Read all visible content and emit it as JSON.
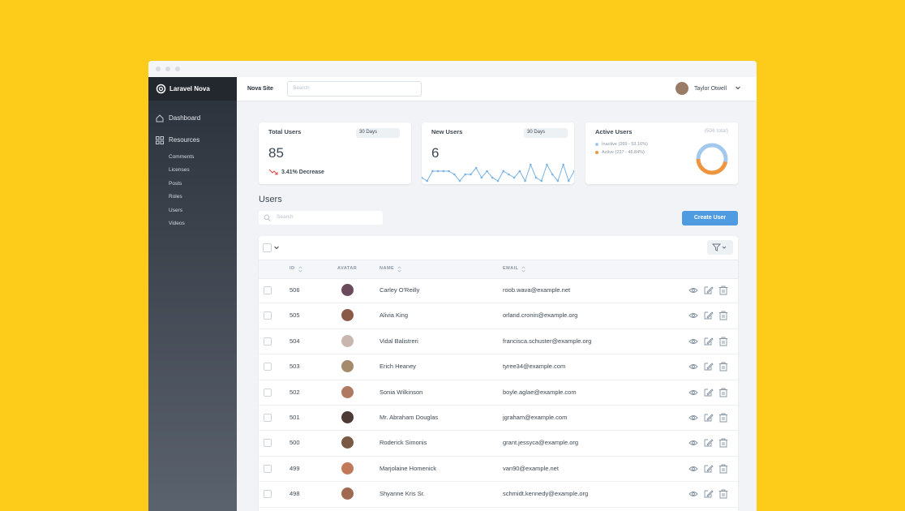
{
  "sidebar": {
    "brand": "Laravel Nova",
    "nav": [
      "Dashboard",
      "Resources"
    ],
    "resources": [
      "Comments",
      "Licenses",
      "Posts",
      "Roles",
      "Users",
      "Videos"
    ]
  },
  "topbar": {
    "site": "Nova Site",
    "search_placeholder": "Search",
    "user": "Taylor Otwell"
  },
  "cards": {
    "total_users": {
      "title": "Total Users",
      "range": "30 Days",
      "value": 85,
      "change": "3.41% Decrease"
    },
    "new_users": {
      "title": "New Users",
      "range": "30 Days",
      "value": 6,
      "trend": [
        1,
        0,
        3,
        3,
        3,
        3,
        2,
        0,
        2,
        2,
        4,
        1,
        3,
        1,
        0,
        3,
        2,
        1,
        3,
        0,
        5,
        1,
        0,
        5,
        2,
        0,
        5,
        0,
        3
      ]
    },
    "active_users": {
      "title": "Active Users",
      "total": "(506 total)",
      "legend": [
        "Inactive (269 - 53.16%)",
        "Active (237 - 46.84%)"
      ],
      "values": [
        269,
        237
      ],
      "colors": [
        "#a3c8ee",
        "#ef9540"
      ]
    }
  },
  "users": {
    "title": "Users",
    "search_placeholder": "Search",
    "create": "Create User",
    "columns": [
      "ID",
      "AVATAR",
      "NAME",
      "EMAIL"
    ],
    "rows": [
      {
        "id": "506",
        "name": "Carley O'Reilly",
        "email": "roob.wava@example.net"
      },
      {
        "id": "505",
        "name": "Alivia King",
        "email": "orland.cronin@example.org"
      },
      {
        "id": "504",
        "name": "Vidal Balistreri",
        "email": "francisca.schuster@example.org"
      },
      {
        "id": "503",
        "name": "Erich Heaney",
        "email": "tyree34@example.com"
      },
      {
        "id": "502",
        "name": "Sonia Wilkinson",
        "email": "boyle.aglae@example.com"
      },
      {
        "id": "501",
        "name": "Mr. Abraham Douglas",
        "email": "jgraham@example.com"
      },
      {
        "id": "500",
        "name": "Roderick Simonis",
        "email": "grant.jessyca@example.org"
      },
      {
        "id": "499",
        "name": "Marjolaine Homenick",
        "email": "van90@example.net"
      },
      {
        "id": "498",
        "name": "Shyanne Kris Sr.",
        "email": "schmidt.kennedy@example.org"
      }
    ]
  }
}
